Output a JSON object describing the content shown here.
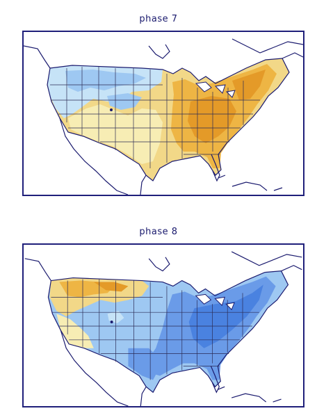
{
  "panels": [
    {
      "title": "phase 7"
    },
    {
      "title": "phase 8"
    }
  ],
  "colors": {
    "frame": "#1f1f7a",
    "coast": "#1a1a6e",
    "state_lines": "#2b2b55",
    "light_blue": "#c6e3f7",
    "mid_blue": "#9ec8f2",
    "blue": "#6a9be8",
    "dark_blue": "#4a82e0",
    "pale_yellow": "#f7edb4",
    "yellow": "#f2d888",
    "orange": "#eeb544",
    "dark_orange": "#e49a28"
  }
}
